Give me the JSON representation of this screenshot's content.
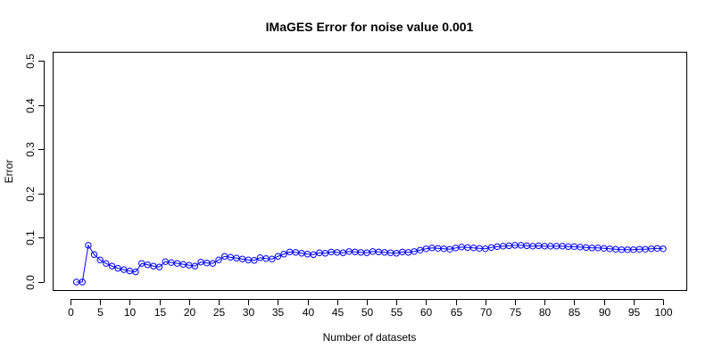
{
  "chart_data": {
    "type": "line",
    "title": "IMaGES Error for noise value 0.001",
    "xlabel": "Number of datasets",
    "ylabel": "Error",
    "xlim": [
      0,
      100
    ],
    "ylim": [
      0,
      0.5
    ],
    "x_ticks": [
      0,
      5,
      10,
      15,
      20,
      25,
      30,
      35,
      40,
      45,
      50,
      55,
      60,
      65,
      70,
      75,
      80,
      85,
      90,
      95,
      100
    ],
    "x_tick_labels": [
      "0",
      "5",
      "10",
      "15",
      "20",
      "25",
      "30",
      "35",
      "40",
      "45",
      "50",
      "55",
      "60",
      "65",
      "70",
      "75",
      "80",
      "85",
      "90",
      "95",
      "100"
    ],
    "y_ticks": [
      0.0,
      0.1,
      0.2,
      0.3,
      0.4,
      0.5
    ],
    "y_tick_labels": [
      "0.0",
      "0.1",
      "0.2",
      "0.3",
      "0.4",
      "0.5"
    ],
    "grid": false,
    "series": [
      {
        "color": "#0000ff",
        "marker": "open-circle",
        "x": [
          1,
          2,
          3,
          4,
          5,
          6,
          7,
          8,
          9,
          10,
          11,
          12,
          13,
          14,
          15,
          16,
          17,
          18,
          19,
          20,
          21,
          22,
          23,
          24,
          25,
          26,
          27,
          28,
          29,
          30,
          31,
          32,
          33,
          34,
          35,
          36,
          37,
          38,
          39,
          40,
          41,
          42,
          43,
          44,
          45,
          46,
          47,
          48,
          49,
          50,
          51,
          52,
          53,
          54,
          55,
          56,
          57,
          58,
          59,
          60,
          61,
          62,
          63,
          64,
          65,
          66,
          67,
          68,
          69,
          70,
          71,
          72,
          73,
          74,
          75,
          76,
          77,
          78,
          79,
          80,
          81,
          82,
          83,
          84,
          85,
          86,
          87,
          88,
          89,
          90,
          91,
          92,
          93,
          94,
          95,
          96,
          97,
          98,
          99,
          100
        ],
        "values": [
          0.0,
          0.0,
          0.083,
          0.062,
          0.05,
          0.042,
          0.036,
          0.031,
          0.028,
          0.025,
          0.023,
          0.042,
          0.039,
          0.036,
          0.034,
          0.046,
          0.044,
          0.042,
          0.04,
          0.038,
          0.036,
          0.045,
          0.043,
          0.042,
          0.05,
          0.058,
          0.056,
          0.054,
          0.052,
          0.05,
          0.049,
          0.055,
          0.053,
          0.052,
          0.058,
          0.063,
          0.068,
          0.067,
          0.065,
          0.063,
          0.062,
          0.066,
          0.065,
          0.068,
          0.067,
          0.066,
          0.069,
          0.068,
          0.067,
          0.066,
          0.069,
          0.068,
          0.067,
          0.066,
          0.065,
          0.068,
          0.067,
          0.069,
          0.072,
          0.075,
          0.077,
          0.076,
          0.075,
          0.074,
          0.077,
          0.079,
          0.078,
          0.077,
          0.076,
          0.075,
          0.078,
          0.08,
          0.081,
          0.082,
          0.083,
          0.083,
          0.082,
          0.081,
          0.082,
          0.081,
          0.081,
          0.081,
          0.081,
          0.08,
          0.08,
          0.079,
          0.078,
          0.077,
          0.077,
          0.076,
          0.075,
          0.074,
          0.073,
          0.073,
          0.073,
          0.074,
          0.074,
          0.075,
          0.076,
          0.075
        ]
      }
    ]
  }
}
